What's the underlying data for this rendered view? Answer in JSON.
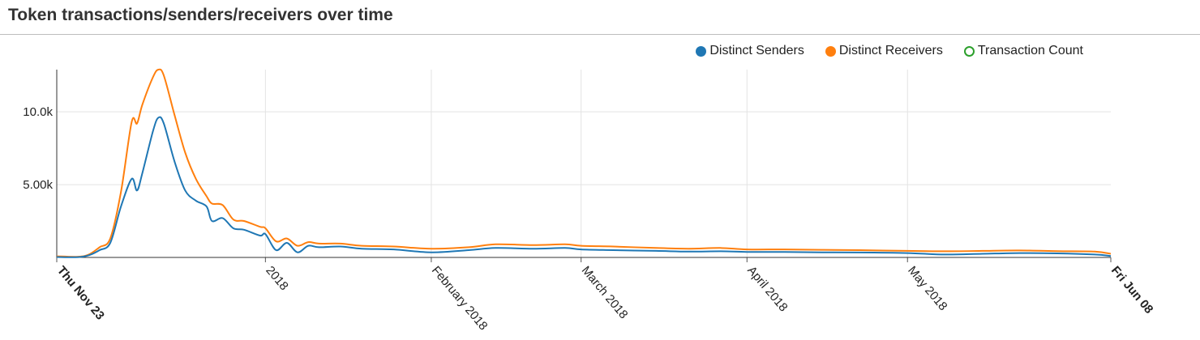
{
  "header": {
    "title": "Token transactions/senders/receivers over time"
  },
  "legend": [
    {
      "label": "Distinct Senders",
      "color": "#1f77b4",
      "style": "filled"
    },
    {
      "label": "Distinct Receivers",
      "color": "#ff7f0e",
      "style": "filled"
    },
    {
      "label": "Transaction Count",
      "color": "#2ca02c",
      "style": "hollow"
    }
  ],
  "chart_data": {
    "type": "line",
    "title": "Token transactions/senders/receivers over time",
    "xlabel": "",
    "ylabel": "",
    "x_domain": [
      "2017-11-23",
      "2018-06-08"
    ],
    "ylim": [
      0,
      12900
    ],
    "y_ticks": [
      {
        "value": 5000,
        "label": "5.00k"
      },
      {
        "value": 10000,
        "label": "10.0k"
      }
    ],
    "x_ticks": [
      {
        "date": "2017-11-23",
        "label": "Thu Nov 23",
        "bold": true,
        "gridline": false
      },
      {
        "date": "2018-01-01",
        "label": "2018",
        "bold": false,
        "gridline": true
      },
      {
        "date": "2018-02-01",
        "label": "February 2018",
        "bold": false,
        "gridline": true
      },
      {
        "date": "2018-03-01",
        "label": "March 2018",
        "bold": false,
        "gridline": true
      },
      {
        "date": "2018-04-01",
        "label": "April 2018",
        "bold": false,
        "gridline": true
      },
      {
        "date": "2018-05-01",
        "label": "May 2018",
        "bold": false,
        "gridline": true
      },
      {
        "date": "2018-06-08",
        "label": "Fri Jun 08",
        "bold": true,
        "gridline": false
      }
    ],
    "grid": true,
    "legend_position": "top-right",
    "series": [
      {
        "name": "Distinct Receivers",
        "color": "#ff7f0e",
        "points": [
          [
            "2017-11-23",
            80
          ],
          [
            "2017-11-27",
            50
          ],
          [
            "2017-11-29",
            200
          ],
          [
            "2017-12-01",
            700
          ],
          [
            "2017-12-03",
            1300
          ],
          [
            "2017-12-05",
            4500
          ],
          [
            "2017-12-07",
            9300
          ],
          [
            "2017-12-08",
            9200
          ],
          [
            "2017-12-09",
            10500
          ],
          [
            "2017-12-11",
            12400
          ],
          [
            "2017-12-12",
            12900
          ],
          [
            "2017-12-13",
            12500
          ],
          [
            "2017-12-15",
            9800
          ],
          [
            "2017-12-17",
            7200
          ],
          [
            "2017-12-19",
            5400
          ],
          [
            "2017-12-21",
            4200
          ],
          [
            "2017-12-22",
            3700
          ],
          [
            "2017-12-24",
            3600
          ],
          [
            "2017-12-26",
            2600
          ],
          [
            "2017-12-28",
            2500
          ],
          [
            "2017-12-31",
            2100
          ],
          [
            "2018-01-01",
            2000
          ],
          [
            "2018-01-03",
            1100
          ],
          [
            "2018-01-05",
            1300
          ],
          [
            "2018-01-07",
            800
          ],
          [
            "2018-01-09",
            1050
          ],
          [
            "2018-01-11",
            950
          ],
          [
            "2018-01-15",
            950
          ],
          [
            "2018-01-19",
            800
          ],
          [
            "2018-01-25",
            750
          ],
          [
            "2018-02-01",
            600
          ],
          [
            "2018-02-08",
            700
          ],
          [
            "2018-02-13",
            900
          ],
          [
            "2018-02-20",
            850
          ],
          [
            "2018-02-26",
            900
          ],
          [
            "2018-03-01",
            800
          ],
          [
            "2018-03-07",
            750
          ],
          [
            "2018-03-15",
            650
          ],
          [
            "2018-03-21",
            600
          ],
          [
            "2018-03-27",
            650
          ],
          [
            "2018-04-01",
            550
          ],
          [
            "2018-04-08",
            550
          ],
          [
            "2018-04-15",
            520
          ],
          [
            "2018-04-22",
            500
          ],
          [
            "2018-05-01",
            450
          ],
          [
            "2018-05-08",
            420
          ],
          [
            "2018-05-15",
            450
          ],
          [
            "2018-05-22",
            480
          ],
          [
            "2018-05-29",
            430
          ],
          [
            "2018-06-05",
            400
          ],
          [
            "2018-06-08",
            250
          ]
        ]
      },
      {
        "name": "Distinct Senders",
        "color": "#1f77b4",
        "points": [
          [
            "2017-11-23",
            30
          ],
          [
            "2017-11-27",
            20
          ],
          [
            "2017-11-29",
            150
          ],
          [
            "2017-12-01",
            500
          ],
          [
            "2017-12-03",
            1000
          ],
          [
            "2017-12-05",
            3500
          ],
          [
            "2017-12-07",
            5400
          ],
          [
            "2017-12-08",
            4600
          ],
          [
            "2017-12-09",
            5800
          ],
          [
            "2017-12-11",
            8700
          ],
          [
            "2017-12-12",
            9600
          ],
          [
            "2017-12-13",
            9200
          ],
          [
            "2017-12-15",
            6600
          ],
          [
            "2017-12-17",
            4600
          ],
          [
            "2017-12-19",
            3900
          ],
          [
            "2017-12-21",
            3500
          ],
          [
            "2017-12-22",
            2500
          ],
          [
            "2017-12-24",
            2700
          ],
          [
            "2017-12-26",
            2000
          ],
          [
            "2017-12-28",
            1900
          ],
          [
            "2017-12-31",
            1500
          ],
          [
            "2018-01-01",
            1600
          ],
          [
            "2018-01-03",
            500
          ],
          [
            "2018-01-05",
            1000
          ],
          [
            "2018-01-07",
            350
          ],
          [
            "2018-01-09",
            800
          ],
          [
            "2018-01-11",
            700
          ],
          [
            "2018-01-15",
            750
          ],
          [
            "2018-01-19",
            600
          ],
          [
            "2018-01-25",
            550
          ],
          [
            "2018-02-01",
            350
          ],
          [
            "2018-02-08",
            500
          ],
          [
            "2018-02-13",
            650
          ],
          [
            "2018-02-20",
            600
          ],
          [
            "2018-02-26",
            650
          ],
          [
            "2018-03-01",
            550
          ],
          [
            "2018-03-07",
            500
          ],
          [
            "2018-03-15",
            450
          ],
          [
            "2018-03-21",
            400
          ],
          [
            "2018-03-27",
            420
          ],
          [
            "2018-04-01",
            380
          ],
          [
            "2018-04-08",
            370
          ],
          [
            "2018-04-15",
            350
          ],
          [
            "2018-04-22",
            340
          ],
          [
            "2018-05-01",
            300
          ],
          [
            "2018-05-08",
            200
          ],
          [
            "2018-05-15",
            250
          ],
          [
            "2018-05-22",
            300
          ],
          [
            "2018-05-29",
            280
          ],
          [
            "2018-06-05",
            200
          ],
          [
            "2018-06-08",
            100
          ]
        ]
      }
    ]
  }
}
